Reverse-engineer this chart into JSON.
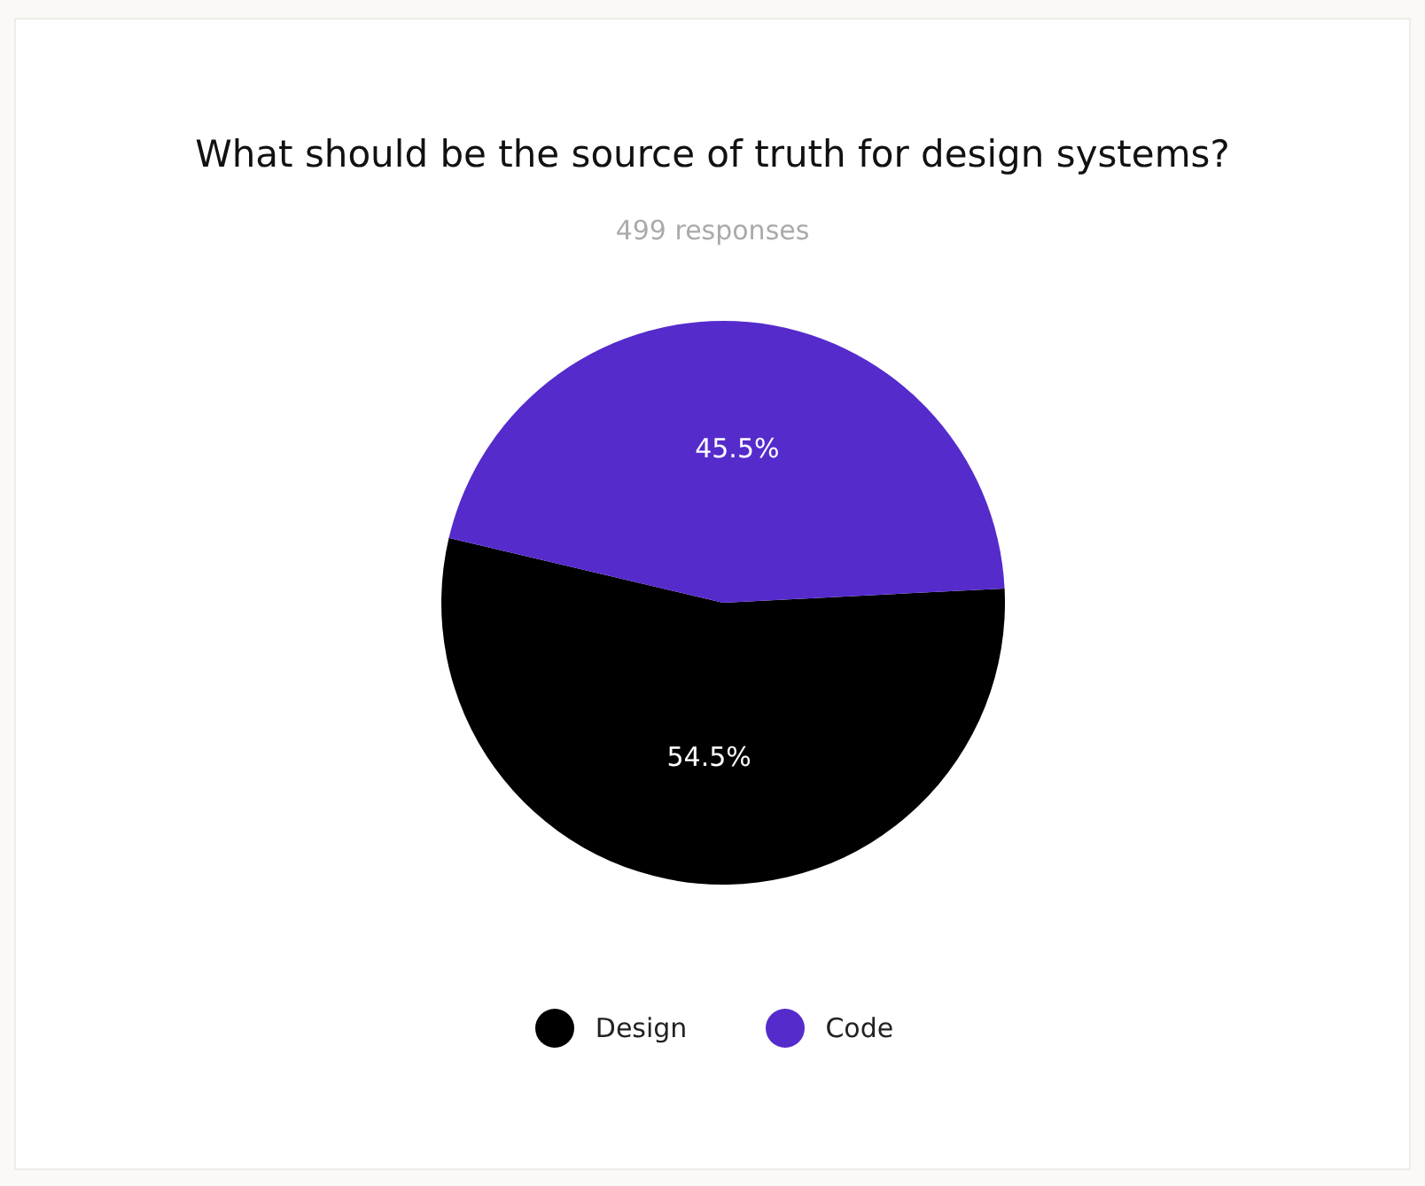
{
  "chart_data": {
    "type": "pie",
    "title": "What should be the source of truth for design systems?",
    "subtitle": "499 responses",
    "categories": [
      "Design",
      "Code"
    ],
    "values": [
      54.5,
      45.5
    ],
    "colors": [
      "#000000",
      "#552bcc"
    ],
    "value_labels": [
      "54.5%",
      "45.5%"
    ],
    "legend": "bottom"
  }
}
